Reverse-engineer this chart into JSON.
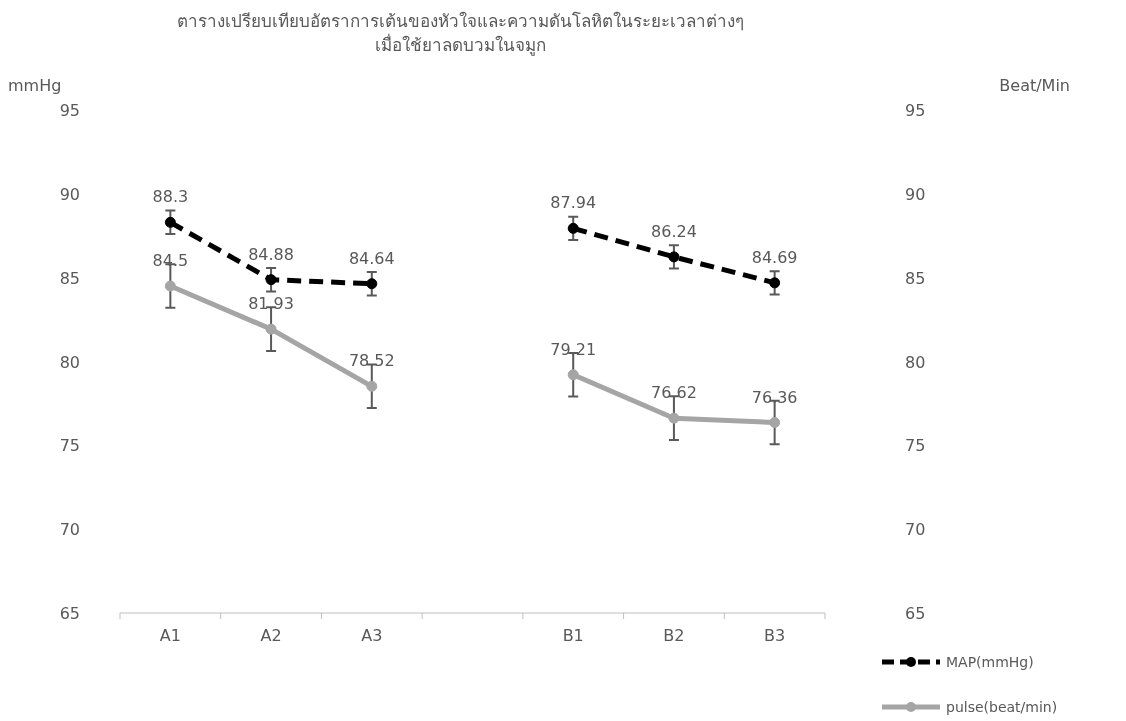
{
  "chart_data": {
    "type": "line",
    "title": "ตารางเปรียบเทียบอัตราการเต้นของหัวใจและความดันโลหิตในระยะเวลาต่างๆ เมื่อใช้ยาลดบวมในจมูก",
    "ylabel": "mmHg",
    "y2label": "Beat/Min",
    "categories": [
      "A1",
      "A2",
      "A3",
      null,
      "B1",
      "B2",
      "B3"
    ],
    "ylim": [
      65,
      95
    ],
    "yticks": [
      65,
      70,
      75,
      80,
      85,
      90,
      95
    ],
    "y2lim": [
      65,
      95
    ],
    "y2ticks": [
      65,
      70,
      75,
      80,
      85,
      90,
      95
    ],
    "series": [
      {
        "name": "MAP(mmHg)",
        "color": "#000000",
        "line_style": "dashed",
        "values": [
          88.3,
          84.88,
          84.64,
          null,
          87.94,
          86.24,
          84.69
        ],
        "errors": [
          0.7,
          0.7,
          0.7,
          null,
          0.7,
          0.7,
          0.7
        ]
      },
      {
        "name": "pulse(beat/min)",
        "color": "#a5a5a5",
        "line_style": "solid",
        "values": [
          84.5,
          81.93,
          78.52,
          null,
          79.21,
          76.62,
          76.36
        ],
        "errors": [
          1.3,
          1.3,
          1.3,
          null,
          1.3,
          1.3,
          1.3
        ]
      }
    ],
    "marker": "circle",
    "data_labels": true,
    "grid": false,
    "legend": "bottom right"
  }
}
